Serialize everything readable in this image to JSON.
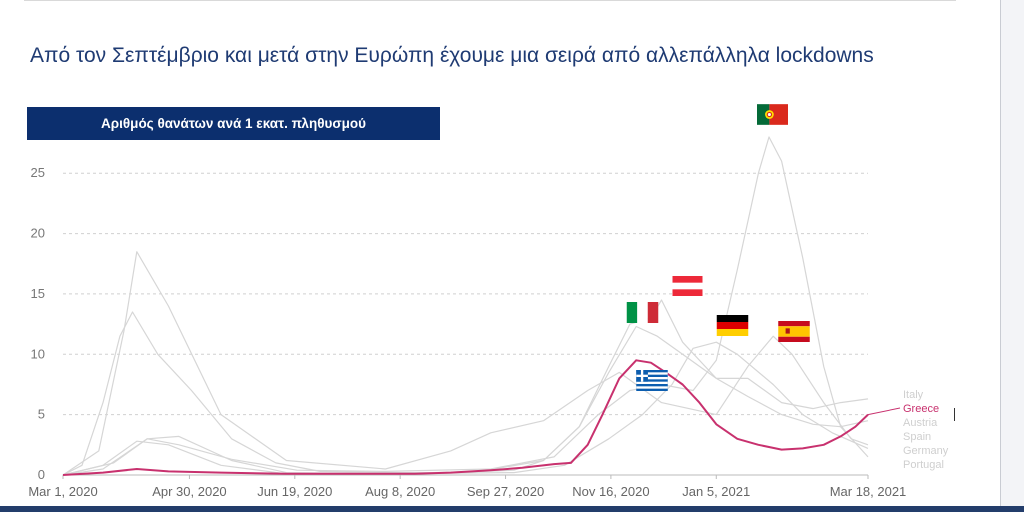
{
  "slide": {
    "title": "Από τον Σεπτέμβριο και μετά στην Ευρώπη έχουμε μια σειρά από αλλεπάλληλα lockdowns",
    "subtitle": "Αριθμός θανάτων ανά 1 εκατ. πληθυσμού"
  },
  "colors": {
    "highlight": "#c8316e",
    "other_series": "#d6d6d6",
    "navy": "#0c2f6e",
    "title": "#1f3b73"
  },
  "flags": [
    {
      "country": "Portugal",
      "icon": "portugal-flag-icon"
    },
    {
      "country": "Austria",
      "icon": "austria-flag-icon"
    },
    {
      "country": "Italy",
      "icon": "italy-flag-icon"
    },
    {
      "country": "Germany",
      "icon": "germany-flag-icon"
    },
    {
      "country": "Spain",
      "icon": "spain-flag-icon"
    },
    {
      "country": "Greece",
      "icon": "greece-flag-icon"
    }
  ],
  "chart_data": {
    "type": "line",
    "title": "",
    "xlabel": "",
    "ylabel": "",
    "xlim": [
      "2020-03-01",
      "2021-03-18"
    ],
    "ylim": [
      0,
      28
    ],
    "yticks": [
      0,
      5,
      10,
      15,
      20,
      25
    ],
    "xtick_labels": [
      {
        "label": "Mar 1, 2020",
        "date": "2020-03-01"
      },
      {
        "label": "Apr 30, 2020",
        "date": "2020-04-30"
      },
      {
        "label": "Jun 19, 2020",
        "date": "2020-06-19"
      },
      {
        "label": "Aug 8, 2020",
        "date": "2020-08-08"
      },
      {
        "label": "Sep 27, 2020",
        "date": "2020-09-27"
      },
      {
        "label": "Nov 16, 2020",
        "date": "2020-11-16"
      },
      {
        "label": "Jan 5, 2021",
        "date": "2021-01-05"
      },
      {
        "label": "Mar 18, 2021",
        "date": "2021-03-18"
      }
    ],
    "grid": true,
    "legend": "right-end labels",
    "series": [
      {
        "name": "Italy",
        "color": "#d6d6d6",
        "highlight": false,
        "x": [
          "2020-03-01",
          "2020-03-10",
          "2020-03-20",
          "2020-03-28",
          "2020-04-03",
          "2020-04-15",
          "2020-05-01",
          "2020-05-20",
          "2020-06-10",
          "2020-07-01",
          "2020-08-01",
          "2020-09-01",
          "2020-10-01",
          "2020-10-15",
          "2020-11-01",
          "2020-11-15",
          "2020-11-28",
          "2020-12-08",
          "2020-12-20",
          "2021-01-05",
          "2021-01-20",
          "2021-02-05",
          "2021-02-20",
          "2021-03-05",
          "2021-03-18"
        ],
        "y": [
          0,
          0.8,
          6,
          11.5,
          13.5,
          10,
          7,
          3,
          1,
          0.3,
          0.2,
          0.2,
          0.4,
          1.2,
          4,
          8.5,
          12.3,
          11.5,
          10,
          8,
          8,
          6,
          5.5,
          6,
          6.3
        ]
      },
      {
        "name": "Greece",
        "color": "#c8316e",
        "highlight": true,
        "x": [
          "2020-03-01",
          "2020-03-20",
          "2020-04-05",
          "2020-04-20",
          "2020-05-15",
          "2020-06-15",
          "2020-07-15",
          "2020-08-15",
          "2020-09-01",
          "2020-09-20",
          "2020-10-05",
          "2020-10-20",
          "2020-10-28",
          "2020-11-05",
          "2020-11-12",
          "2020-11-20",
          "2020-11-28",
          "2020-12-05",
          "2020-12-12",
          "2020-12-20",
          "2020-12-28",
          "2021-01-05",
          "2021-01-15",
          "2021-01-25",
          "2021-02-05",
          "2021-02-15",
          "2021-02-25",
          "2021-03-05",
          "2021-03-12",
          "2021-03-18"
        ],
        "y": [
          0,
          0.2,
          0.5,
          0.3,
          0.2,
          0.1,
          0.1,
          0.1,
          0.2,
          0.4,
          0.6,
          0.9,
          1.0,
          2.5,
          5.0,
          8.0,
          9.5,
          9.3,
          8.5,
          7.5,
          6.0,
          4.2,
          3.0,
          2.5,
          2.1,
          2.2,
          2.5,
          3.2,
          4.0,
          5.0
        ]
      },
      {
        "name": "Austria",
        "color": "#d6d6d6",
        "highlight": false,
        "x": [
          "2020-03-01",
          "2020-03-20",
          "2020-04-05",
          "2020-04-20",
          "2020-05-15",
          "2020-06-15",
          "2020-08-01",
          "2020-09-15",
          "2020-10-15",
          "2020-11-01",
          "2020-11-15",
          "2020-11-25",
          "2020-12-05",
          "2020-12-10",
          "2020-12-20",
          "2021-01-05",
          "2021-01-20",
          "2021-02-05",
          "2021-02-20",
          "2021-03-05",
          "2021-03-18"
        ],
        "y": [
          0,
          0.8,
          2.8,
          2.5,
          0.8,
          0.1,
          0.1,
          0.3,
          1.2,
          4,
          9,
          12.5,
          13,
          14.5,
          11,
          8,
          6.5,
          5,
          4.2,
          4,
          4.5
        ]
      },
      {
        "name": "Spain",
        "color": "#d6d6d6",
        "highlight": false,
        "x": [
          "2020-03-01",
          "2020-03-18",
          "2020-03-30",
          "2020-04-05",
          "2020-04-20",
          "2020-05-15",
          "2020-06-15",
          "2020-08-01",
          "2020-09-01",
          "2020-09-20",
          "2020-10-15",
          "2020-11-05",
          "2020-11-20",
          "2020-12-10",
          "2021-01-05",
          "2021-01-20",
          "2021-02-01",
          "2021-02-10",
          "2021-02-25",
          "2021-03-10",
          "2021-03-18"
        ],
        "y": [
          0,
          2,
          12,
          18.5,
          14,
          5,
          1.2,
          0.5,
          2,
          3.5,
          4.5,
          7,
          8.5,
          6,
          5,
          9,
          11.5,
          10,
          6,
          3,
          2.5
        ]
      },
      {
        "name": "Germany",
        "color": "#d6d6d6",
        "highlight": false,
        "x": [
          "2020-03-01",
          "2020-03-20",
          "2020-04-10",
          "2020-04-25",
          "2020-05-20",
          "2020-06-15",
          "2020-08-01",
          "2020-10-01",
          "2020-10-25",
          "2020-11-15",
          "2020-12-01",
          "2020-12-15",
          "2020-12-25",
          "2021-01-05",
          "2021-01-15",
          "2021-02-01",
          "2021-02-15",
          "2021-03-01",
          "2021-03-18"
        ],
        "y": [
          0,
          0.5,
          3,
          3.2,
          1.2,
          0.2,
          0.1,
          0.2,
          0.8,
          3,
          5,
          7.5,
          10.5,
          11,
          10,
          7.5,
          5,
          3.5,
          2.2
        ]
      },
      {
        "name": "Portugal",
        "color": "#d6d6d6",
        "highlight": false,
        "x": [
          "2020-03-01",
          "2020-03-25",
          "2020-04-10",
          "2020-04-25",
          "2020-05-20",
          "2020-06-20",
          "2020-08-01",
          "2020-09-20",
          "2020-10-20",
          "2020-11-10",
          "2020-11-25",
          "2020-12-10",
          "2020-12-25",
          "2021-01-05",
          "2021-01-15",
          "2021-01-25",
          "2021-01-30",
          "2021-02-05",
          "2021-02-15",
          "2021-02-25",
          "2021-03-05",
          "2021-03-18"
        ],
        "y": [
          0,
          1,
          3,
          2.5,
          1.3,
          0.4,
          0.3,
          0.5,
          1.5,
          5,
          7,
          7.5,
          7,
          9.5,
          17,
          25,
          28,
          26,
          18,
          9,
          4,
          1.5
        ]
      }
    ]
  }
}
